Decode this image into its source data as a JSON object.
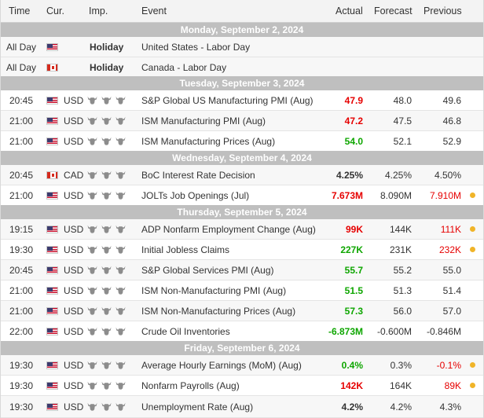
{
  "header": {
    "time": "Time",
    "currency": "Cur.",
    "importance": "Imp.",
    "event": "Event",
    "actual": "Actual",
    "forecast": "Forecast",
    "previous": "Previous"
  },
  "colors": {
    "positive": "#0ea600",
    "negative": "#e60000",
    "day_bar": "#bfbfbf",
    "revised_dot": "#f0b429"
  },
  "days": [
    {
      "label": "Monday, September 2, 2024",
      "rows": [
        {
          "time": "All Day",
          "flag": "us-flag-icon",
          "importance_text": "Holiday",
          "event": "United States - Labor Day"
        },
        {
          "time": "All Day",
          "flag": "canada-flag-icon",
          "importance_text": "Holiday",
          "event": "Canada - Labor Day"
        }
      ]
    },
    {
      "label": "Tuesday, September 3, 2024",
      "rows": [
        {
          "time": "20:45",
          "flag": "us-flag-icon",
          "currency": "USD",
          "importance": "3 bulls",
          "event": "S&P Global US Manufacturing PMI (Aug)",
          "actual": "47.9",
          "actual_status": "negative",
          "forecast": "48.0",
          "previous": "49.6"
        },
        {
          "time": "21:00",
          "flag": "us-flag-icon",
          "currency": "USD",
          "importance": "3 bulls",
          "event": "ISM Manufacturing PMI (Aug)",
          "actual": "47.2",
          "actual_status": "negative",
          "forecast": "47.5",
          "previous": "46.8"
        },
        {
          "time": "21:00",
          "flag": "us-flag-icon",
          "currency": "USD",
          "importance": "3 bulls",
          "event": "ISM Manufacturing Prices (Aug)",
          "actual": "54.0",
          "actual_status": "positive",
          "forecast": "52.1",
          "previous": "52.9"
        }
      ]
    },
    {
      "label": "Wednesday, September 4, 2024",
      "rows": [
        {
          "time": "20:45",
          "flag": "canada-flag-icon",
          "currency": "CAD",
          "importance": "3 bulls",
          "event": "BoC Interest Rate Decision",
          "actual": "4.25%",
          "actual_status": "neutral",
          "forecast": "4.25%",
          "previous": "4.50%"
        },
        {
          "time": "21:00",
          "flag": "us-flag-icon",
          "currency": "USD",
          "importance": "3 bulls",
          "event": "JOLTs Job Openings (Jul)",
          "actual": "7.673M",
          "actual_status": "negative",
          "forecast": "8.090M",
          "previous": "7.910M",
          "previous_revised": true
        }
      ]
    },
    {
      "label": "Thursday, September 5, 2024",
      "rows": [
        {
          "time": "19:15",
          "flag": "us-flag-icon",
          "currency": "USD",
          "importance": "3 bulls",
          "event": "ADP Nonfarm Employment Change (Aug)",
          "actual": "99K",
          "actual_status": "negative",
          "forecast": "144K",
          "previous": "111K",
          "previous_revised": true
        },
        {
          "time": "19:30",
          "flag": "us-flag-icon",
          "currency": "USD",
          "importance": "3 bulls",
          "event": "Initial Jobless Claims",
          "actual": "227K",
          "actual_status": "positive",
          "forecast": "231K",
          "previous": "232K",
          "previous_revised": true
        },
        {
          "time": "20:45",
          "flag": "us-flag-icon",
          "currency": "USD",
          "importance": "3 bulls",
          "event": "S&P Global Services PMI (Aug)",
          "actual": "55.7",
          "actual_status": "positive",
          "forecast": "55.2",
          "previous": "55.0"
        },
        {
          "time": "21:00",
          "flag": "us-flag-icon",
          "currency": "USD",
          "importance": "3 bulls",
          "event": "ISM Non-Manufacturing PMI (Aug)",
          "actual": "51.5",
          "actual_status": "positive",
          "forecast": "51.3",
          "previous": "51.4"
        },
        {
          "time": "21:00",
          "flag": "us-flag-icon",
          "currency": "USD",
          "importance": "3 bulls",
          "event": "ISM Non-Manufacturing Prices (Aug)",
          "actual": "57.3",
          "actual_status": "positive",
          "forecast": "56.0",
          "previous": "57.0"
        },
        {
          "time": "22:00",
          "flag": "us-flag-icon",
          "currency": "USD",
          "importance": "3 bulls",
          "event": "Crude Oil Inventories",
          "actual": "-6.873M",
          "actual_status": "positive",
          "forecast": "-0.600M",
          "previous": "-0.846M"
        }
      ]
    },
    {
      "label": "Friday, September 6, 2024",
      "rows": [
        {
          "time": "19:30",
          "flag": "us-flag-icon",
          "currency": "USD",
          "importance": "3 bulls",
          "event": "Average Hourly Earnings (MoM) (Aug)",
          "actual": "0.4%",
          "actual_status": "positive",
          "forecast": "0.3%",
          "previous": "-0.1%",
          "previous_revised": true
        },
        {
          "time": "19:30",
          "flag": "us-flag-icon",
          "currency": "USD",
          "importance": "3 bulls",
          "event": "Nonfarm Payrolls (Aug)",
          "actual": "142K",
          "actual_status": "negative",
          "forecast": "164K",
          "previous": "89K",
          "previous_revised": true
        },
        {
          "time": "19:30",
          "flag": "us-flag-icon",
          "currency": "USD",
          "importance": "3 bulls",
          "event": "Unemployment Rate (Aug)",
          "actual": "4.2%",
          "actual_status": "neutral",
          "forecast": "4.2%",
          "previous": "4.3%"
        }
      ]
    }
  ]
}
